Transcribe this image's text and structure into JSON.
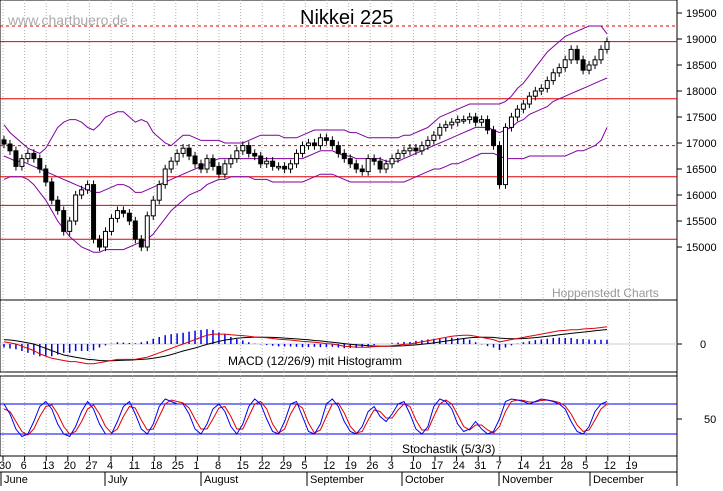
{
  "watermark": "www.chartbuero.de",
  "credit": "Hoppenstedt Charts",
  "colors": {
    "red": "#e00000",
    "purple": "#8000a0",
    "blue": "#0000ee",
    "grid": "#b0b0b0",
    "candle": "#000000"
  },
  "chart_data": [
    {
      "type": "candlestick",
      "title": "Nikkei 225",
      "ylim": [
        14500,
        19500
      ],
      "yticks": [
        "19500",
        "19000",
        "18500",
        "18000",
        "17500",
        "17000",
        "16500",
        "16000",
        "15500",
        "15000"
      ],
      "support_resistance_lines": [
        18950,
        17850,
        16350,
        15800,
        15150
      ],
      "dashed_lines": [
        19250,
        16950
      ],
      "closes": [
        16980,
        16850,
        16550,
        16700,
        16800,
        16700,
        16500,
        16250,
        15900,
        15700,
        15300,
        15500,
        16000,
        16100,
        16200,
        15150,
        15000,
        15300,
        15550,
        15700,
        15650,
        15500,
        15150,
        15000,
        15600,
        15900,
        16200,
        16500,
        16650,
        16800,
        16900,
        16750,
        16600,
        16500,
        16700,
        16550,
        16400,
        16600,
        16700,
        16850,
        16950,
        16800,
        16750,
        16600,
        16650,
        16550,
        16550,
        16500,
        16600,
        16800,
        16950,
        17000,
        16950,
        17100,
        17050,
        16950,
        16800,
        16700,
        16600,
        16500,
        16450,
        16700,
        16650,
        16500,
        16600,
        16700,
        16800,
        16850,
        16900,
        16850,
        16950,
        17050,
        17150,
        17300,
        17350,
        17400,
        17450,
        17450,
        17500,
        17400,
        17450,
        17250,
        16950,
        16200,
        17300,
        17500,
        17650,
        17750,
        17900,
        18000,
        18050,
        18200,
        18350,
        18450,
        18600,
        18800,
        18600,
        18400,
        18500,
        18600,
        18800,
        18950
      ],
      "bollinger_upper": [
        17350,
        17200,
        17100,
        17000,
        16900,
        16850,
        16800,
        16900,
        17100,
        17300,
        17400,
        17450,
        17450,
        17400,
        17300,
        17250,
        17350,
        17500,
        17550,
        17600,
        17600,
        17500,
        17400,
        17450,
        17400,
        17200,
        17100,
        17000,
        16950,
        17050,
        17150,
        17150,
        17100,
        17050,
        17050,
        17050,
        17050,
        17000,
        17000,
        17000,
        17000,
        17050,
        17100,
        17150,
        17150,
        17150,
        17150,
        17100,
        17100,
        17100,
        17150,
        17200,
        17250,
        17250,
        17250,
        17250,
        17250,
        17250,
        17200,
        17200,
        17150,
        17100,
        17100,
        17100,
        17100,
        17100,
        17100,
        17150,
        17150,
        17200,
        17250,
        17300,
        17400,
        17500,
        17550,
        17600,
        17650,
        17700,
        17750,
        17750,
        17750,
        17750,
        17750,
        17750,
        17800,
        17900,
        18050,
        18150,
        18300,
        18450,
        18600,
        18750,
        18850,
        18950,
        19050,
        19100,
        19150,
        19200,
        19250,
        19250,
        19250,
        19100
      ],
      "bollinger_middle": [
        16750,
        16700,
        16650,
        16650,
        16600,
        16550,
        16500,
        16450,
        16400,
        16350,
        16300,
        16250,
        16200,
        16150,
        16100,
        16050,
        16050,
        16100,
        16150,
        16200,
        16200,
        16150,
        16050,
        16050,
        16100,
        16150,
        16200,
        16250,
        16300,
        16350,
        16400,
        16450,
        16500,
        16550,
        16600,
        16650,
        16700,
        16700,
        16700,
        16700,
        16700,
        16700,
        16700,
        16700,
        16700,
        16700,
        16700,
        16700,
        16700,
        16700,
        16700,
        16750,
        16800,
        16850,
        16850,
        16850,
        16800,
        16750,
        16750,
        16700,
        16700,
        16700,
        16700,
        16700,
        16650,
        16650,
        16650,
        16700,
        16750,
        16800,
        16850,
        16900,
        16950,
        17000,
        17050,
        17100,
        17150,
        17200,
        17250,
        17300,
        17300,
        17300,
        17250,
        17200,
        17250,
        17300,
        17400,
        17450,
        17550,
        17600,
        17650,
        17700,
        17800,
        17850,
        17900,
        17950,
        18000,
        18050,
        18100,
        18150,
        18200,
        18250
      ],
      "bollinger_lower": [
        16300,
        16350,
        16350,
        16350,
        16300,
        16200,
        16050,
        15900,
        15700,
        15500,
        15350,
        15200,
        15100,
        15000,
        14950,
        14900,
        14900,
        14950,
        14950,
        14950,
        14950,
        15000,
        15050,
        15100,
        15150,
        15250,
        15400,
        15550,
        15700,
        15800,
        15900,
        16000,
        16050,
        16100,
        16200,
        16250,
        16300,
        16300,
        16350,
        16350,
        16350,
        16350,
        16300,
        16300,
        16300,
        16250,
        16250,
        16250,
        16250,
        16250,
        16250,
        16300,
        16350,
        16400,
        16400,
        16400,
        16350,
        16300,
        16250,
        16250,
        16250,
        16250,
        16250,
        16250,
        16250,
        16250,
        16250,
        16250,
        16300,
        16350,
        16400,
        16450,
        16500,
        16500,
        16550,
        16600,
        16600,
        16650,
        16700,
        16750,
        16800,
        16800,
        16800,
        16750,
        16700,
        16700,
        16700,
        16700,
        16750,
        16750,
        16750,
        16750,
        16750,
        16750,
        16750,
        16800,
        16850,
        16850,
        16900,
        16950,
        17050,
        17300
      ]
    },
    {
      "type": "line",
      "title": "MACD (12/26/9) mit Histogramm",
      "ylim": [
        -1,
        1
      ],
      "yticks": [
        "0"
      ],
      "macd": [
        0.1,
        0.05,
        0.0,
        -0.1,
        -0.2,
        -0.3,
        -0.45,
        -0.55,
        -0.65,
        -0.7,
        -0.75,
        -0.8,
        -0.8,
        -0.85,
        -0.9,
        -0.9,
        -0.85,
        -0.8,
        -0.75,
        -0.7,
        -0.7,
        -0.7,
        -0.7,
        -0.65,
        -0.6,
        -0.5,
        -0.4,
        -0.3,
        -0.2,
        -0.1,
        0.0,
        0.1,
        0.2,
        0.3,
        0.4,
        0.45,
        0.45,
        0.45,
        0.42,
        0.4,
        0.38,
        0.35,
        0.32,
        0.3,
        0.28,
        0.25,
        0.22,
        0.2,
        0.18,
        0.15,
        0.12,
        0.1,
        0.08,
        0.05,
        0.02,
        0.0,
        -0.05,
        -0.1,
        -0.12,
        -0.15,
        -0.15,
        -0.15,
        -0.12,
        -0.1,
        -0.1,
        -0.08,
        -0.05,
        -0.02,
        0.0,
        0.05,
        0.1,
        0.15,
        0.2,
        0.25,
        0.3,
        0.35,
        0.38,
        0.4,
        0.4,
        0.35,
        0.3,
        0.25,
        0.2,
        0.1,
        0.15,
        0.2,
        0.25,
        0.3,
        0.35,
        0.4,
        0.45,
        0.5,
        0.55,
        0.6,
        0.62,
        0.65,
        0.65,
        0.68,
        0.7,
        0.72,
        0.75,
        0.78
      ],
      "signal": [
        0.2,
        0.18,
        0.15,
        0.1,
        0.05,
        0.0,
        -0.1,
        -0.2,
        -0.3,
        -0.4,
        -0.5,
        -0.55,
        -0.6,
        -0.65,
        -0.7,
        -0.72,
        -0.75,
        -0.76,
        -0.76,
        -0.75,
        -0.74,
        -0.73,
        -0.72,
        -0.7,
        -0.68,
        -0.65,
        -0.6,
        -0.55,
        -0.48,
        -0.4,
        -0.32,
        -0.25,
        -0.18,
        -0.1,
        -0.02,
        0.05,
        0.12,
        0.18,
        0.22,
        0.26,
        0.28,
        0.3,
        0.31,
        0.31,
        0.31,
        0.3,
        0.29,
        0.27,
        0.25,
        0.23,
        0.21,
        0.19,
        0.16,
        0.14,
        0.11,
        0.08,
        0.05,
        0.02,
        -0.01,
        -0.04,
        -0.06,
        -0.08,
        -0.09,
        -0.1,
        -0.1,
        -0.1,
        -0.09,
        -0.08,
        -0.06,
        -0.04,
        -0.01,
        0.02,
        0.05,
        0.09,
        0.13,
        0.17,
        0.21,
        0.25,
        0.28,
        0.3,
        0.31,
        0.31,
        0.3,
        0.27,
        0.25,
        0.24,
        0.24,
        0.25,
        0.27,
        0.29,
        0.32,
        0.35,
        0.38,
        0.42,
        0.45,
        0.48,
        0.51,
        0.54,
        0.57,
        0.6,
        0.63,
        0.66
      ]
    },
    {
      "type": "line",
      "title": "Stochastik (5/3/3)",
      "ylim": [
        0,
        100
      ],
      "yticks": [
        "50"
      ],
      "reference_lines": [
        80,
        20
      ],
      "k_line": [
        80,
        60,
        30,
        15,
        20,
        45,
        75,
        85,
        70,
        40,
        20,
        15,
        35,
        65,
        85,
        70,
        40,
        20,
        20,
        45,
        75,
        85,
        60,
        30,
        20,
        40,
        75,
        90,
        85,
        80,
        80,
        60,
        30,
        20,
        40,
        70,
        80,
        65,
        35,
        20,
        40,
        75,
        90,
        80,
        50,
        25,
        20,
        45,
        80,
        85,
        55,
        25,
        20,
        40,
        80,
        90,
        75,
        45,
        25,
        20,
        35,
        65,
        75,
        55,
        45,
        60,
        80,
        85,
        60,
        30,
        20,
        35,
        75,
        90,
        85,
        70,
        40,
        25,
        30,
        45,
        30,
        20,
        25,
        50,
        85,
        90,
        88,
        85,
        80,
        85,
        90,
        88,
        85,
        80,
        70,
        45,
        25,
        20,
        35,
        65,
        80,
        85
      ],
      "d_line": [
        70,
        65,
        45,
        25,
        18,
        30,
        55,
        75,
        78,
        60,
        35,
        20,
        25,
        45,
        70,
        78,
        60,
        35,
        22,
        30,
        55,
        75,
        72,
        48,
        28,
        30,
        55,
        80,
        88,
        85,
        82,
        72,
        50,
        30,
        30,
        50,
        72,
        75,
        55,
        30,
        30,
        55,
        80,
        85,
        70,
        40,
        22,
        30,
        60,
        80,
        72,
        42,
        22,
        28,
        55,
        80,
        82,
        62,
        35,
        22,
        25,
        48,
        68,
        65,
        52,
        52,
        68,
        80,
        75,
        48,
        28,
        28,
        55,
        80,
        88,
        80,
        58,
        35,
        28,
        38,
        38,
        28,
        22,
        35,
        65,
        85,
        88,
        87,
        84,
        84,
        87,
        88,
        86,
        83,
        76,
        60,
        38,
        25,
        28,
        48,
        70,
        80
      ]
    }
  ],
  "time_axis": {
    "day_ticks": [
      "30",
      "6",
      "13",
      "20",
      "27",
      "4",
      "11",
      "18",
      "25",
      "1",
      "8",
      "15",
      "22",
      "29",
      "5",
      "12",
      "19",
      "26",
      "3",
      "10",
      "17",
      "24",
      "31",
      "7",
      "14",
      "21",
      "28",
      "5",
      "12",
      "19"
    ],
    "months": [
      "June",
      "July",
      "August",
      "September",
      "October",
      "November",
      "December"
    ]
  }
}
